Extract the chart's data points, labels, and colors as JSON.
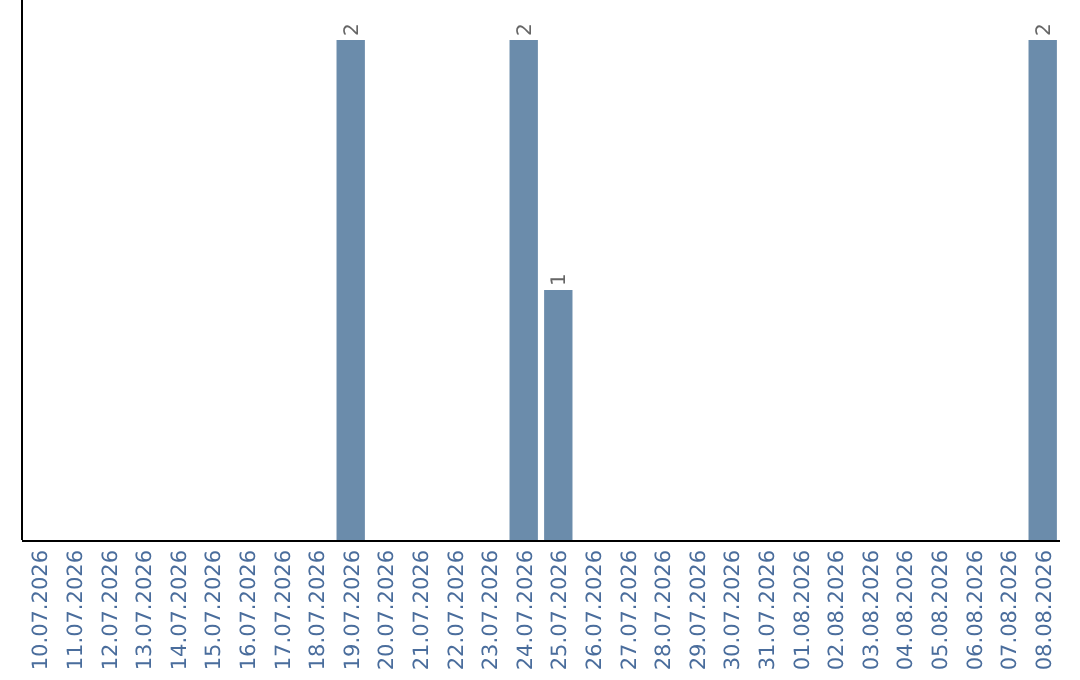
{
  "chart_data": {
    "type": "bar",
    "categories": [
      "10.07.2026",
      "11.07.2026",
      "12.07.2026",
      "13.07.2026",
      "14.07.2026",
      "15.07.2026",
      "16.07.2026",
      "17.07.2026",
      "18.07.2026",
      "19.07.2026",
      "20.07.2026",
      "21.07.2026",
      "22.07.2026",
      "23.07.2026",
      "24.07.2026",
      "25.07.2026",
      "26.07.2026",
      "27.07.2026",
      "28.07.2026",
      "29.07.2026",
      "30.07.2026",
      "31.07.2026",
      "01.08.2026",
      "02.08.2026",
      "03.08.2026",
      "04.08.2026",
      "05.08.2026",
      "06.08.2026",
      "07.08.2026",
      "08.08.2026"
    ],
    "values": [
      0,
      0,
      0,
      0,
      0,
      0,
      0,
      0,
      0,
      2,
      0,
      0,
      0,
      0,
      2,
      1,
      0,
      0,
      0,
      0,
      0,
      0,
      0,
      0,
      0,
      0,
      0,
      0,
      0,
      2
    ],
    "value_labels": [
      null,
      null,
      null,
      null,
      null,
      null,
      null,
      null,
      null,
      "2",
      null,
      null,
      null,
      null,
      "2",
      "1",
      null,
      null,
      null,
      null,
      null,
      null,
      null,
      null,
      null,
      null,
      null,
      null,
      null,
      "2"
    ],
    "color": "#6b8cab",
    "tick_labels": "x"
  }
}
